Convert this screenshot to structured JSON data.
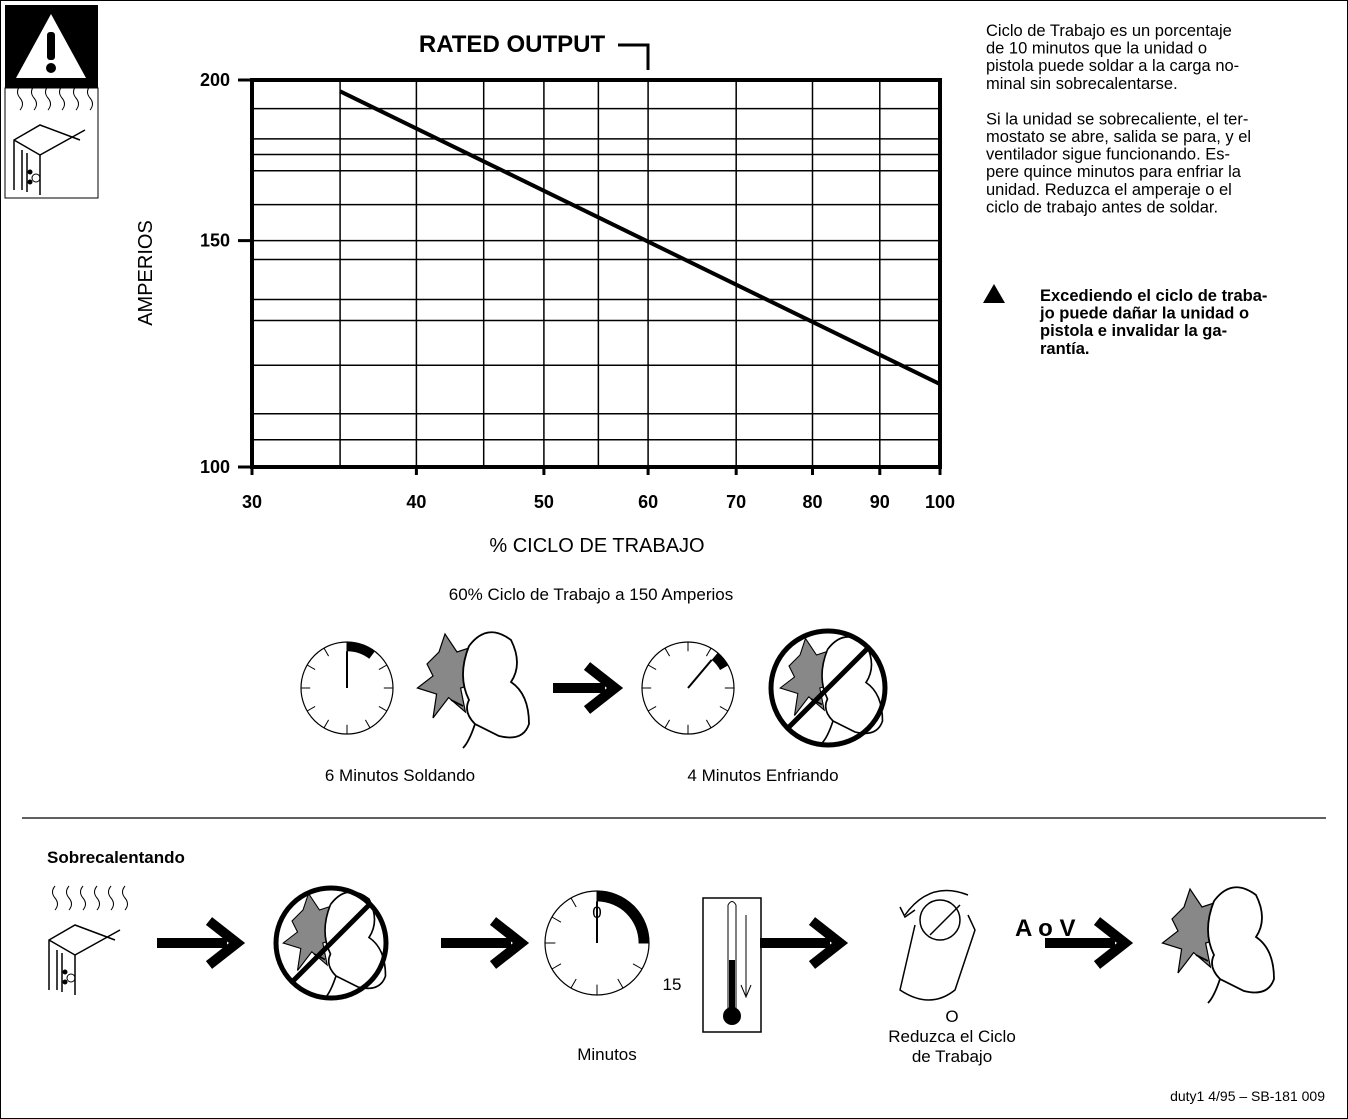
{
  "chart_data": {
    "type": "line",
    "title": "RATED OUTPUT",
    "xlabel": "% CICLO DE TRABAJO",
    "ylabel": "AMPERIOS",
    "log_scale": true,
    "grid": true,
    "color": "#000000",
    "x": [
      35,
      100
    ],
    "values": [
      196,
      116
    ],
    "xlim": [
      30,
      100
    ],
    "ylim": [
      100,
      200
    ],
    "xticks": [
      30,
      40,
      50,
      60,
      70,
      80,
      90,
      100
    ],
    "yticks": [
      100,
      150,
      200
    ],
    "xgrid": [
      35,
      40,
      45,
      50,
      55,
      60,
      70,
      80,
      90
    ],
    "ygrid": [
      105,
      110,
      120,
      130,
      135,
      145,
      150,
      160,
      170,
      175,
      180,
      190
    ]
  },
  "sidebar": {
    "paragraphs": [
      [
        "Ciclo de Trabajo es un porcentaje",
        "de 10 minutos que la unidad o",
        "pistola puede soldar a la carga no-",
        "minal sin sobrecalentarse."
      ],
      [
        "Si la unidad se sobrecaliente, el ter-",
        "mostato se abre, salida se para, y el",
        "ventilador sigue funcionando. Es-",
        "pere quince minutos para enfriar la",
        "unidad. Reduzca el amperaje o el",
        "ciclo de trabajo antes de soldar."
      ]
    ],
    "warning": [
      "Excediendo el ciclo de traba-",
      "jo puede dañar la unidad o",
      "pistola e invalidar la ga-",
      "rantía."
    ]
  },
  "duty_example": {
    "title": "60% Ciclo de Trabajo a 150 Amperios",
    "captions": [
      "6 Minutos Soldando",
      "4 Minutos Enfriando"
    ]
  },
  "overheating": {
    "title": "Sobrecalentando",
    "timer_start": "0",
    "timer_end": "15",
    "timer_label": "Minutos",
    "knob_label": "A o V",
    "or": "O",
    "reduce": [
      "Reduzca el Ciclo",
      "de Trabajo"
    ]
  },
  "footer": "duty1 4/95 – SB-181 009"
}
